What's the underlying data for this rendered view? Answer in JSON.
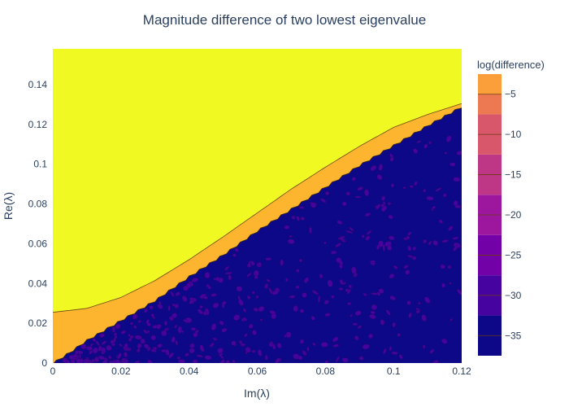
{
  "chart_data": {
    "type": "heatmap",
    "title": "Magnitude difference of two lowest eigenvalue",
    "xlabel": "Im(λ)",
    "ylabel": "Re(λ)",
    "xlim": [
      0,
      0.12
    ],
    "ylim": [
      0,
      0.158
    ],
    "x_ticks": [
      0,
      0.02,
      0.04,
      0.06,
      0.08,
      0.1,
      0.12
    ],
    "x_tick_labels": [
      "0",
      "0.02",
      "0.04",
      "0.06",
      "0.08",
      "0.1",
      "0.12"
    ],
    "y_ticks": [
      0,
      0.02,
      0.04,
      0.06,
      0.08,
      0.1,
      0.12,
      0.14
    ],
    "y_tick_labels": [
      "0",
      "0.02",
      "0.04",
      "0.06",
      "0.08",
      "0.1",
      "0.12",
      "0.14"
    ],
    "colorbar": {
      "title": "log(difference)",
      "range": [
        -37.5,
        -2.5
      ],
      "ticks": [
        -5,
        -10,
        -15,
        -20,
        -25,
        -30,
        -35
      ],
      "tick_labels": [
        "−5",
        "−10",
        "−15",
        "−20",
        "−25",
        "−30",
        "−35"
      ],
      "levels": [
        {
          "from": -37.5,
          "to": -32.5,
          "color": "#0d0887"
        },
        {
          "from": -32.5,
          "to": -27.5,
          "color": "#46039f"
        },
        {
          "from": -27.5,
          "to": -22.5,
          "color": "#7201a8"
        },
        {
          "from": -22.5,
          "to": -17.5,
          "color": "#9c179e"
        },
        {
          "from": -17.5,
          "to": -12.5,
          "color": "#bd3786"
        },
        {
          "from": -12.5,
          "to": -7.5,
          "color": "#d8576b"
        },
        {
          "from": -7.5,
          "to": -5,
          "color": "#ed7953"
        },
        {
          "from": -5,
          "to": -2.5,
          "color": "#fb9f3a"
        },
        {
          "from": -2.5,
          "to": 0,
          "color": "#fdca26"
        },
        {
          "from": 0,
          "to": 1,
          "color": "#f0f921"
        }
      ]
    },
    "regions": [
      {
        "name": "upper",
        "level": -2.5,
        "color": "#f0f921",
        "boundary_lower": [
          [
            0,
            0.0255
          ],
          [
            0.01,
            0.0275
          ],
          [
            0.02,
            0.033
          ],
          [
            0.03,
            0.0415
          ],
          [
            0.04,
            0.052
          ],
          [
            0.05,
            0.0635
          ],
          [
            0.06,
            0.0755
          ],
          [
            0.07,
            0.0875
          ],
          [
            0.08,
            0.0985
          ],
          [
            0.09,
            0.109
          ],
          [
            0.1,
            0.1185
          ],
          [
            0.11,
            0.125
          ],
          [
            0.12,
            0.1305
          ]
        ]
      },
      {
        "name": "band",
        "level": -7.5,
        "color": "#fdb42f"
      },
      {
        "name": "lower",
        "level": -35,
        "color": "#0d0887",
        "boundary_upper": [
          [
            0,
            0
          ],
          [
            0.005,
            0.0055
          ],
          [
            0.01,
            0.0115
          ],
          [
            0.02,
            0.0215
          ],
          [
            0.03,
            0.0315
          ],
          [
            0.04,
            0.0435
          ],
          [
            0.05,
            0.0545
          ],
          [
            0.06,
            0.0665
          ],
          [
            0.07,
            0.0775
          ],
          [
            0.08,
            0.0885
          ],
          [
            0.09,
            0.0995
          ],
          [
            0.1,
            0.1095
          ],
          [
            0.11,
            0.1195
          ],
          [
            0.12,
            0.129
          ]
        ]
      }
    ],
    "speckle_color": "#46039f"
  }
}
